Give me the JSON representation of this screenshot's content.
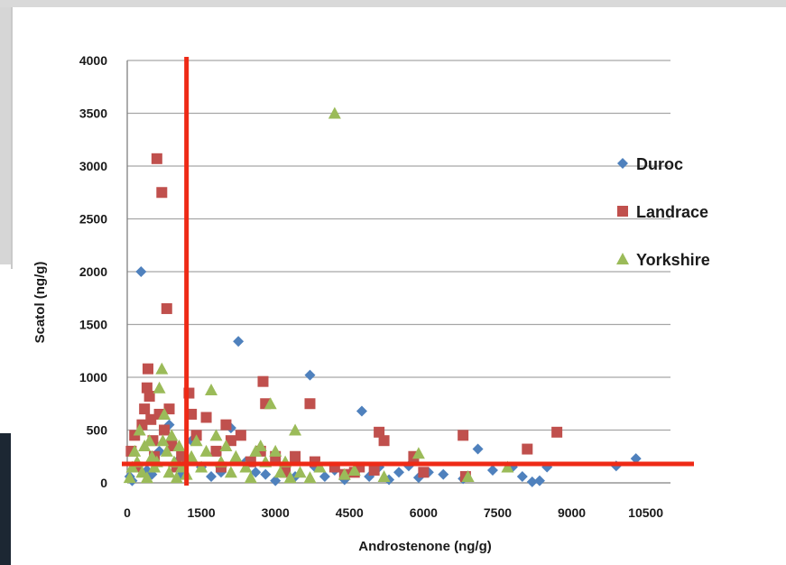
{
  "chart_data": {
    "type": "scatter",
    "xlabel": "Androstenone (ng/g)",
    "ylabel": "Scatol (ng/g)",
    "xlim": [
      0,
      11000
    ],
    "ylim": [
      0,
      4000
    ],
    "x_ticks": [
      0,
      1500,
      3000,
      4500,
      6000,
      7500,
      9000,
      10500
    ],
    "y_ticks": [
      0,
      500,
      1000,
      1500,
      2000,
      2500,
      3000,
      3500,
      4000
    ],
    "grid": "horizontal",
    "legend_position": "right",
    "threshold_lines": {
      "vertical_x": 1200,
      "horizontal_y": 180,
      "color": "#ee2a16"
    },
    "series": [
      {
        "name": "Duroc",
        "marker": "diamond",
        "color": "#4f81bd",
        "points": [
          [
            50,
            60
          ],
          [
            100,
            20
          ],
          [
            150,
            150
          ],
          [
            280,
            2000
          ],
          [
            400,
            120
          ],
          [
            500,
            80
          ],
          [
            650,
            300
          ],
          [
            850,
            550
          ],
          [
            1000,
            200
          ],
          [
            1100,
            80
          ],
          [
            1300,
            400
          ],
          [
            1500,
            150
          ],
          [
            1700,
            60
          ],
          [
            1900,
            100
          ],
          [
            2100,
            520
          ],
          [
            2250,
            1340
          ],
          [
            2400,
            200
          ],
          [
            2600,
            100
          ],
          [
            2800,
            80
          ],
          [
            3000,
            20
          ],
          [
            3200,
            150
          ],
          [
            3400,
            60
          ],
          [
            3700,
            1020
          ],
          [
            3800,
            150
          ],
          [
            4000,
            60
          ],
          [
            4200,
            120
          ],
          [
            4400,
            30
          ],
          [
            4600,
            100
          ],
          [
            4750,
            680
          ],
          [
            4900,
            60
          ],
          [
            5100,
            150
          ],
          [
            5300,
            30
          ],
          [
            5500,
            100
          ],
          [
            5700,
            160
          ],
          [
            5900,
            50
          ],
          [
            6100,
            100
          ],
          [
            6400,
            80
          ],
          [
            6800,
            40
          ],
          [
            7100,
            320
          ],
          [
            7400,
            120
          ],
          [
            7800,
            150
          ],
          [
            8000,
            60
          ],
          [
            8200,
            10
          ],
          [
            8350,
            20
          ],
          [
            8500,
            150
          ],
          [
            9900,
            160
          ],
          [
            10300,
            230
          ]
        ]
      },
      {
        "name": "Landrace",
        "marker": "square",
        "color": "#c0504d",
        "points": [
          [
            80,
            300
          ],
          [
            150,
            450
          ],
          [
            200,
            150
          ],
          [
            300,
            550
          ],
          [
            350,
            700
          ],
          [
            400,
            900
          ],
          [
            420,
            1080
          ],
          [
            450,
            820
          ],
          [
            480,
            600
          ],
          [
            520,
            400
          ],
          [
            550,
            250
          ],
          [
            600,
            3070
          ],
          [
            650,
            650
          ],
          [
            700,
            2750
          ],
          [
            750,
            500
          ],
          [
            800,
            1650
          ],
          [
            850,
            700
          ],
          [
            900,
            350
          ],
          [
            1000,
            150
          ],
          [
            1100,
            250
          ],
          [
            1250,
            850
          ],
          [
            1300,
            650
          ],
          [
            1400,
            450
          ],
          [
            1600,
            620
          ],
          [
            1800,
            300
          ],
          [
            1900,
            150
          ],
          [
            2000,
            550
          ],
          [
            2100,
            400
          ],
          [
            2300,
            450
          ],
          [
            2500,
            200
          ],
          [
            2700,
            300
          ],
          [
            2750,
            960
          ],
          [
            2800,
            750
          ],
          [
            3000,
            250
          ],
          [
            3200,
            100
          ],
          [
            3400,
            250
          ],
          [
            3700,
            750
          ],
          [
            3800,
            200
          ],
          [
            4200,
            150
          ],
          [
            4400,
            80
          ],
          [
            4600,
            100
          ],
          [
            4700,
            150
          ],
          [
            5000,
            120
          ],
          [
            5100,
            480
          ],
          [
            5200,
            400
          ],
          [
            5800,
            250
          ],
          [
            6000,
            100
          ],
          [
            6800,
            450
          ],
          [
            6850,
            60
          ],
          [
            8100,
            320
          ],
          [
            8700,
            480
          ]
        ]
      },
      {
        "name": "Yorkshire",
        "marker": "triangle",
        "color": "#9bbb59",
        "points": [
          [
            50,
            50
          ],
          [
            100,
            150
          ],
          [
            150,
            300
          ],
          [
            200,
            200
          ],
          [
            250,
            500
          ],
          [
            300,
            100
          ],
          [
            350,
            350
          ],
          [
            400,
            50
          ],
          [
            450,
            400
          ],
          [
            500,
            250
          ],
          [
            550,
            150
          ],
          [
            600,
            200
          ],
          [
            650,
            900
          ],
          [
            700,
            1080
          ],
          [
            720,
            400
          ],
          [
            750,
            650
          ],
          [
            800,
            300
          ],
          [
            850,
            100
          ],
          [
            900,
            450
          ],
          [
            950,
            200
          ],
          [
            1000,
            50
          ],
          [
            1050,
            350
          ],
          [
            1100,
            150
          ],
          [
            1200,
            80
          ],
          [
            1300,
            250
          ],
          [
            1400,
            400
          ],
          [
            1500,
            150
          ],
          [
            1600,
            300
          ],
          [
            1700,
            880
          ],
          [
            1800,
            450
          ],
          [
            1900,
            200
          ],
          [
            2000,
            350
          ],
          [
            2100,
            100
          ],
          [
            2200,
            250
          ],
          [
            2400,
            150
          ],
          [
            2500,
            50
          ],
          [
            2600,
            300
          ],
          [
            2700,
            350
          ],
          [
            2800,
            200
          ],
          [
            2900,
            750
          ],
          [
            3000,
            300
          ],
          [
            3100,
            100
          ],
          [
            3200,
            200
          ],
          [
            3300,
            50
          ],
          [
            3400,
            500
          ],
          [
            3500,
            100
          ],
          [
            3700,
            50
          ],
          [
            3900,
            150
          ],
          [
            4200,
            3500
          ],
          [
            4400,
            80
          ],
          [
            4600,
            120
          ],
          [
            5200,
            60
          ],
          [
            5900,
            280
          ],
          [
            6900,
            60
          ],
          [
            7700,
            150
          ]
        ]
      }
    ]
  }
}
